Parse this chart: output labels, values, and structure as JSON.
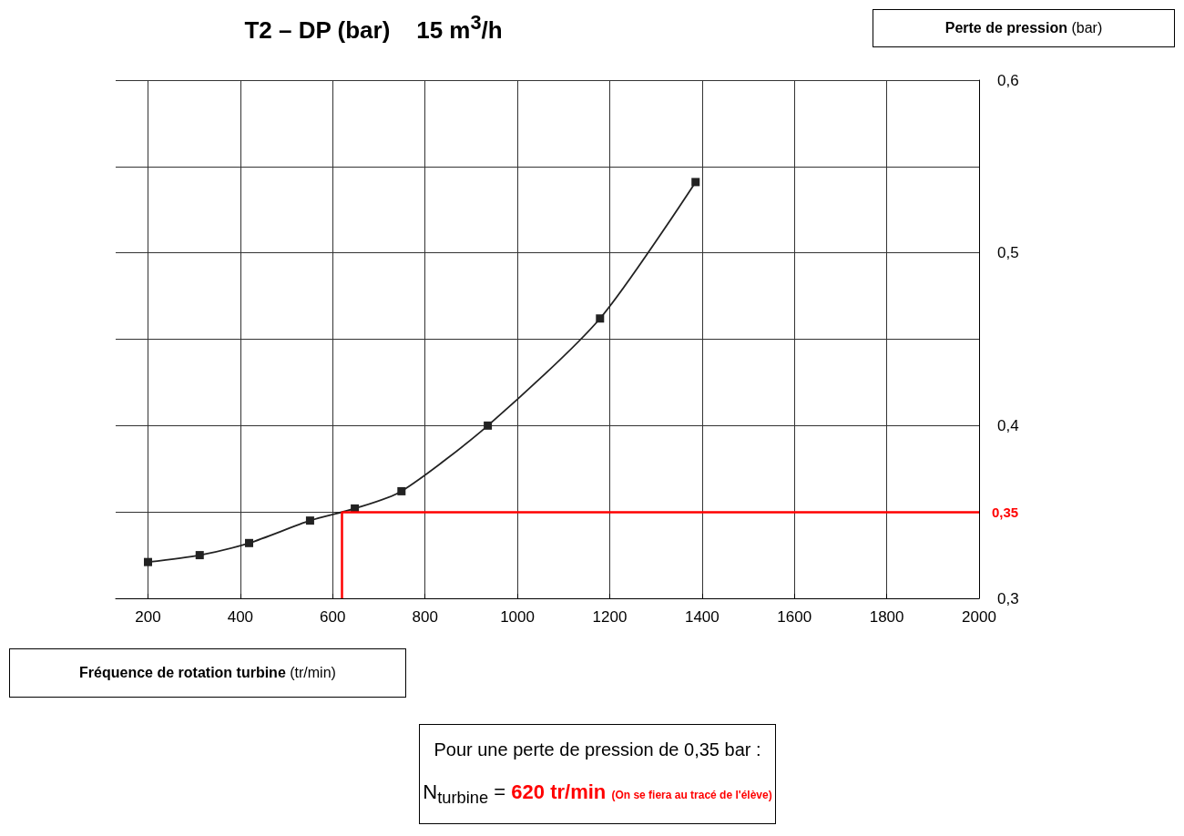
{
  "chart_data": {
    "type": "line",
    "title": "T2 – DP (bar)    15 m$^{3}$/h",
    "xlabel": "Fréquence de rotation turbine (tr/min)",
    "ylabel": "Perte de pression (bar)",
    "x": [
      200,
      312,
      419,
      551,
      648,
      749,
      936,
      1179,
      1386
    ],
    "series": [
      {
        "color": "#222222",
        "values": [
          0.321,
          0.325,
          0.332,
          0.345,
          0.352,
          0.362,
          0.4,
          0.462,
          0.541
        ]
      }
    ],
    "xlim": [
      130,
      2000
    ],
    "xticks": [
      200,
      400,
      600,
      800,
      1000,
      1200,
      1400,
      1600,
      1800,
      2000
    ],
    "ylim": [
      0.3,
      0.6
    ],
    "yticks": [
      {
        "value": 0.3,
        "label": "0,3"
      },
      {
        "value": 0.35,
        "label": null
      },
      {
        "value": 0.4,
        "label": "0,4"
      },
      {
        "value": 0.45,
        "label": null
      },
      {
        "value": 0.5,
        "label": "0,5"
      },
      {
        "value": 0.55,
        "label": null
      },
      {
        "value": 0.6,
        "label": "0,6"
      }
    ],
    "grid": true,
    "marker": "square",
    "line_style": "solid",
    "ref_lines": [
      {
        "axis": "y",
        "value": 0.35,
        "label": "0,35",
        "color": "#ff0000"
      },
      {
        "axis": "x",
        "value": 620,
        "label": null,
        "color": "#ff0000"
      }
    ],
    "annotations": [
      "Pour une perte de pression de 0,35 bar :",
      "N$_{turbine}$ =",
      "620 tr/min",
      "(On se fiera au tracé de l'élève)"
    ]
  }
}
